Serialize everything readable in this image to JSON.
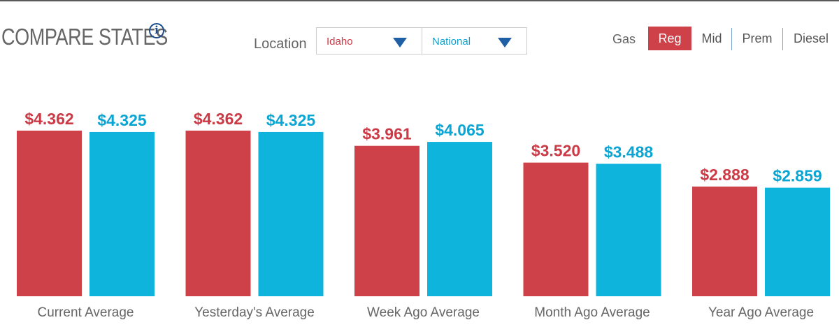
{
  "header": {
    "title": "COMPARE STATES",
    "info_icon": "info-circle-icon",
    "location_label": "Location",
    "state_select": "Idaho",
    "national_select": "National",
    "dropdown_icon": "triangle-down-icon"
  },
  "fuel": {
    "label": "Gas",
    "options": [
      "Reg",
      "Mid",
      "Prem",
      "Diesel"
    ],
    "selected": "Reg"
  },
  "colors": {
    "state": "#cf4149",
    "national": "#0fb4dc",
    "state_text": "#cc3a45",
    "national_text": "#0ba5d4",
    "accent_blue": "#1f5fa5"
  },
  "chart_data": {
    "type": "bar",
    "categories": [
      "Current Average",
      "Yesterday's Average",
      "Week Ago Average",
      "Month Ago Average",
      "Year Ago Average"
    ],
    "series": [
      {
        "name": "Idaho",
        "values": [
          4.362,
          4.362,
          3.961,
          3.52,
          2.888
        ],
        "labels": [
          "$4.362",
          "$4.362",
          "$3.961",
          "$3.520",
          "$2.888"
        ]
      },
      {
        "name": "National",
        "values": [
          4.325,
          4.325,
          4.065,
          3.488,
          2.859
        ],
        "labels": [
          "$4.325",
          "$4.325",
          "$4.065",
          "$3.488",
          "$2.859"
        ]
      }
    ],
    "ylim": [
      0,
      4.8
    ],
    "grid": false,
    "legend": "none"
  }
}
